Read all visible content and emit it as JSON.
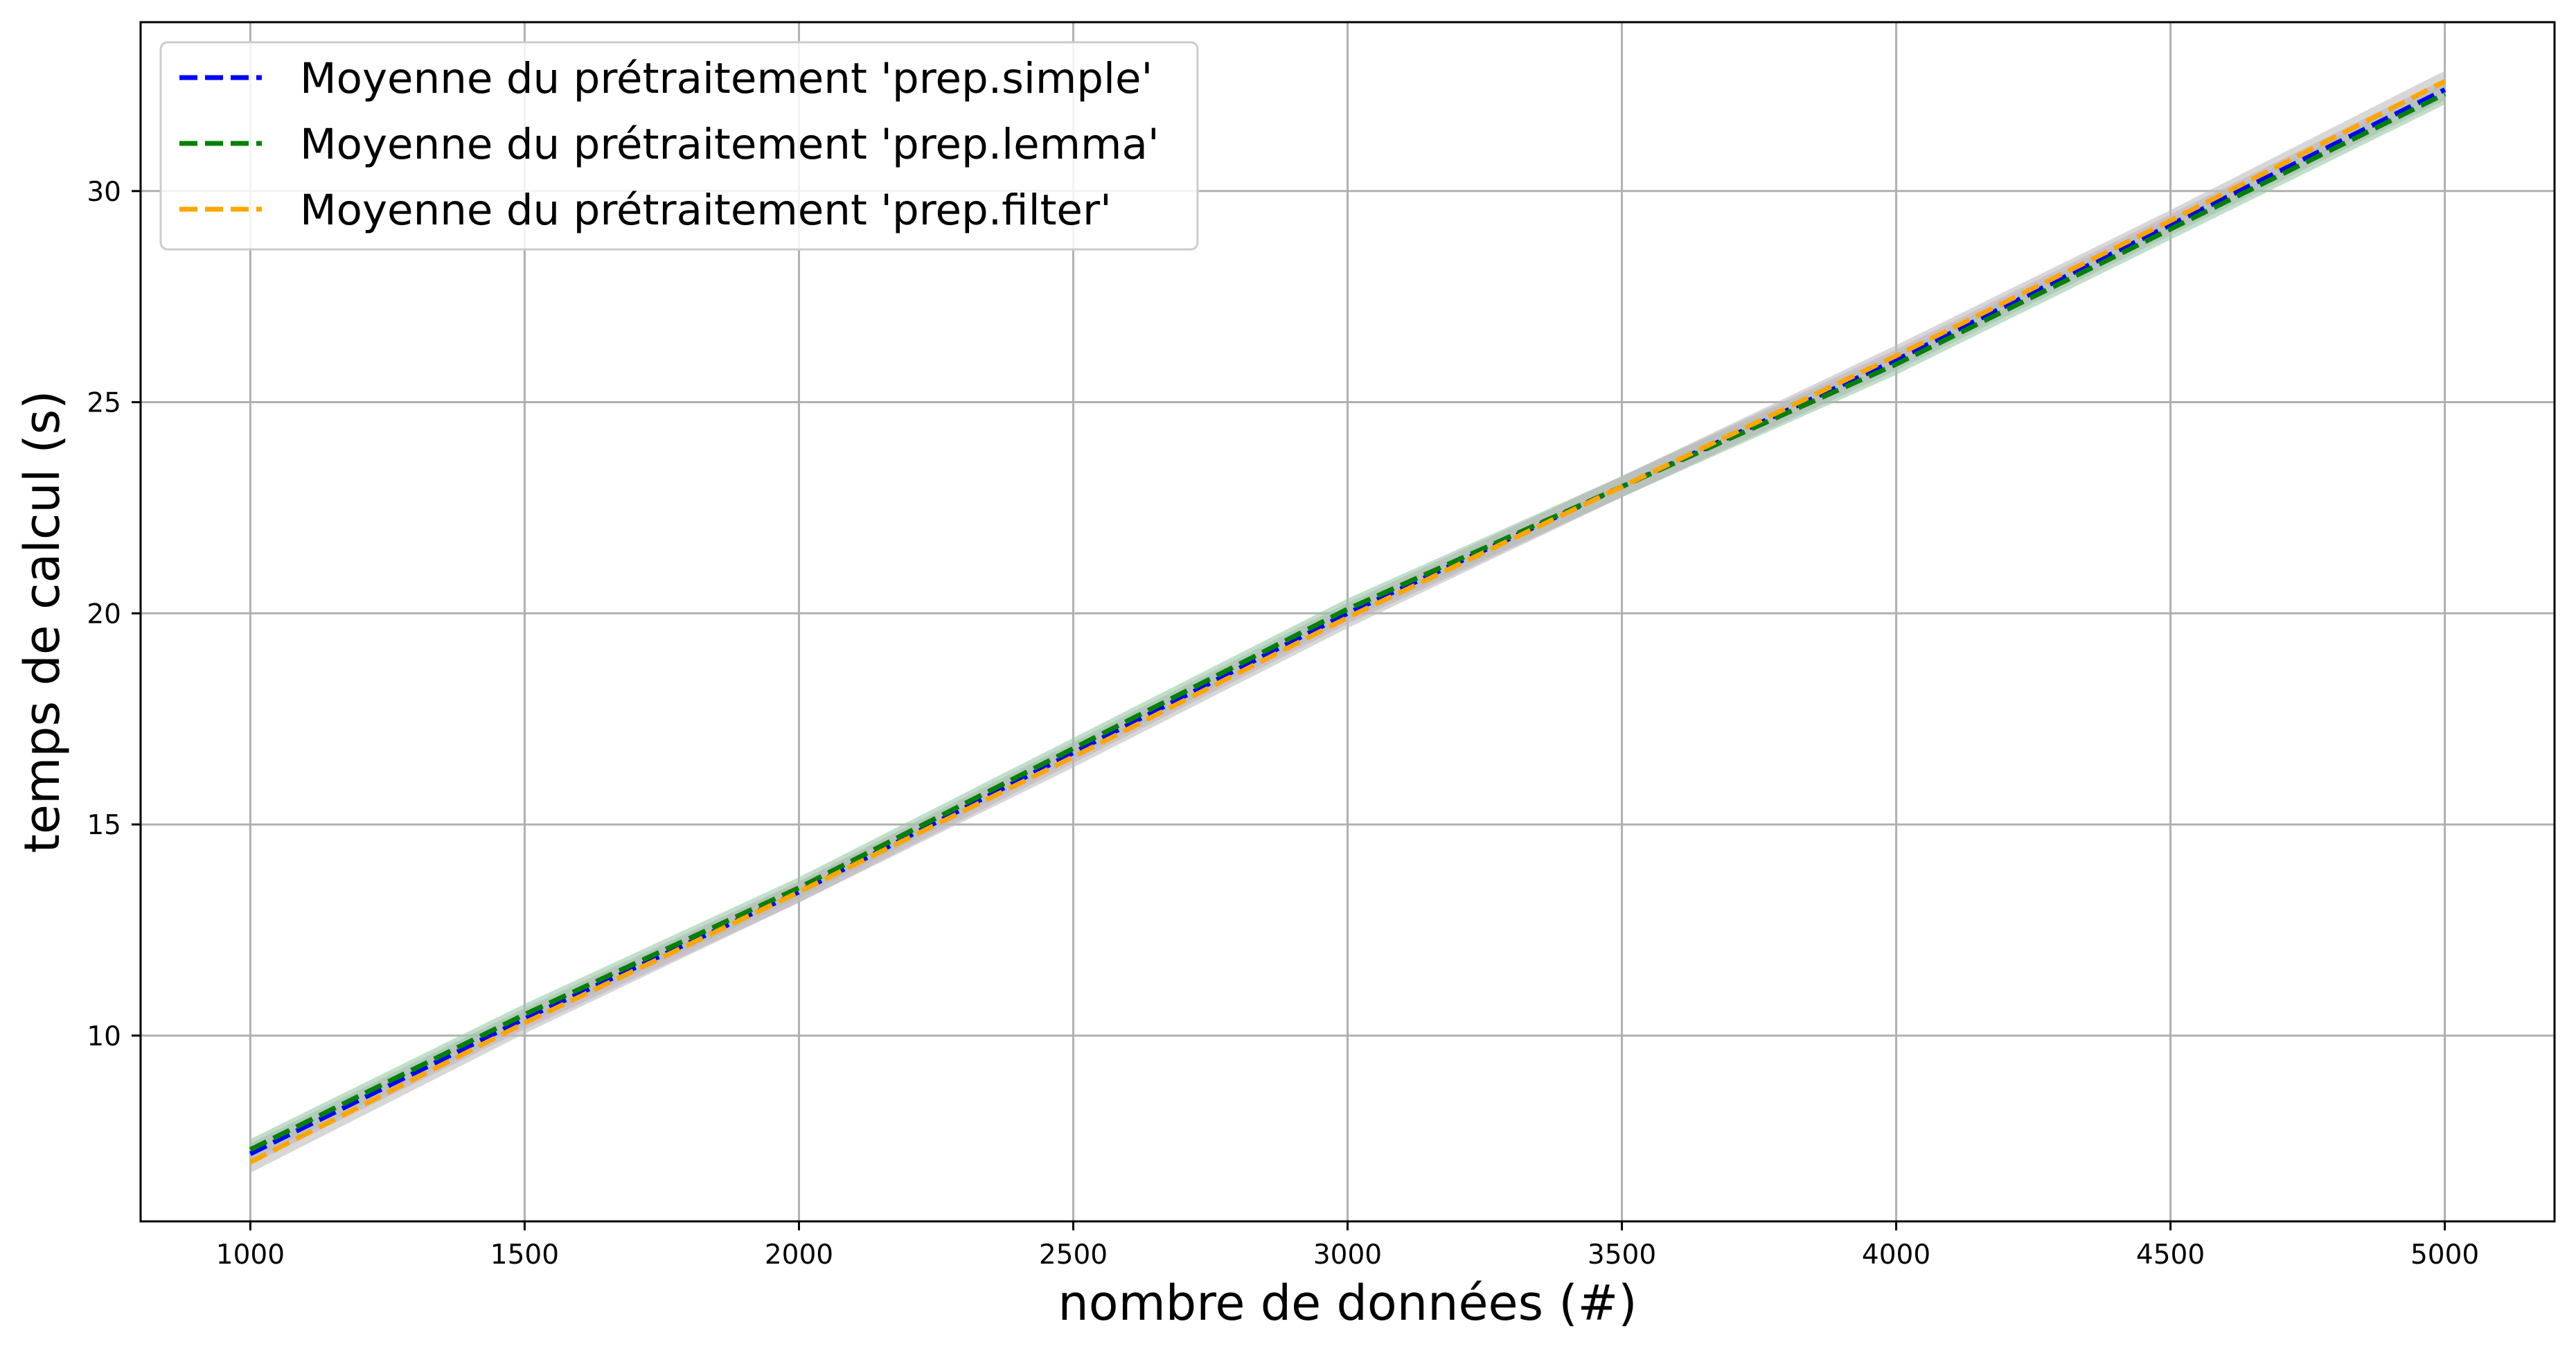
{
  "chart_data": {
    "type": "line",
    "title": "",
    "xlabel": "nombre de données (#)",
    "ylabel": "temps de calcul (s)",
    "xlim": [
      800,
      5200
    ],
    "ylim": [
      5.6,
      34.0
    ],
    "xticks": [
      1000,
      1500,
      2000,
      2500,
      3000,
      3500,
      4000,
      4500,
      5000
    ],
    "yticks": [
      10,
      15,
      20,
      25,
      30
    ],
    "grid": true,
    "legend_position": "top-left",
    "x": [
      1000,
      1500,
      2000,
      2500,
      3000,
      3500,
      4000,
      4500,
      5000
    ],
    "series": [
      {
        "name": "Moyenne du prétraitement 'prep.simple'",
        "color": "#0000ff",
        "band_color": "#c8a2c8",
        "values": [
          7.2,
          10.4,
          13.4,
          16.7,
          20.0,
          23.0,
          26.0,
          29.2,
          32.4
        ]
      },
      {
        "name": "Moyenne du prétraitement 'prep.lemma'",
        "color": "#008000",
        "band_color": "#98c9a3",
        "values": [
          7.3,
          10.5,
          13.5,
          16.8,
          20.1,
          23.0,
          25.9,
          29.1,
          32.3
        ]
      },
      {
        "name": "Moyenne du prétraitement 'prep.filter'",
        "color": "#ffa500",
        "band_color": "#bdbdbd",
        "values": [
          7.0,
          10.3,
          13.4,
          16.6,
          19.9,
          23.0,
          26.1,
          29.3,
          32.6
        ]
      }
    ]
  }
}
